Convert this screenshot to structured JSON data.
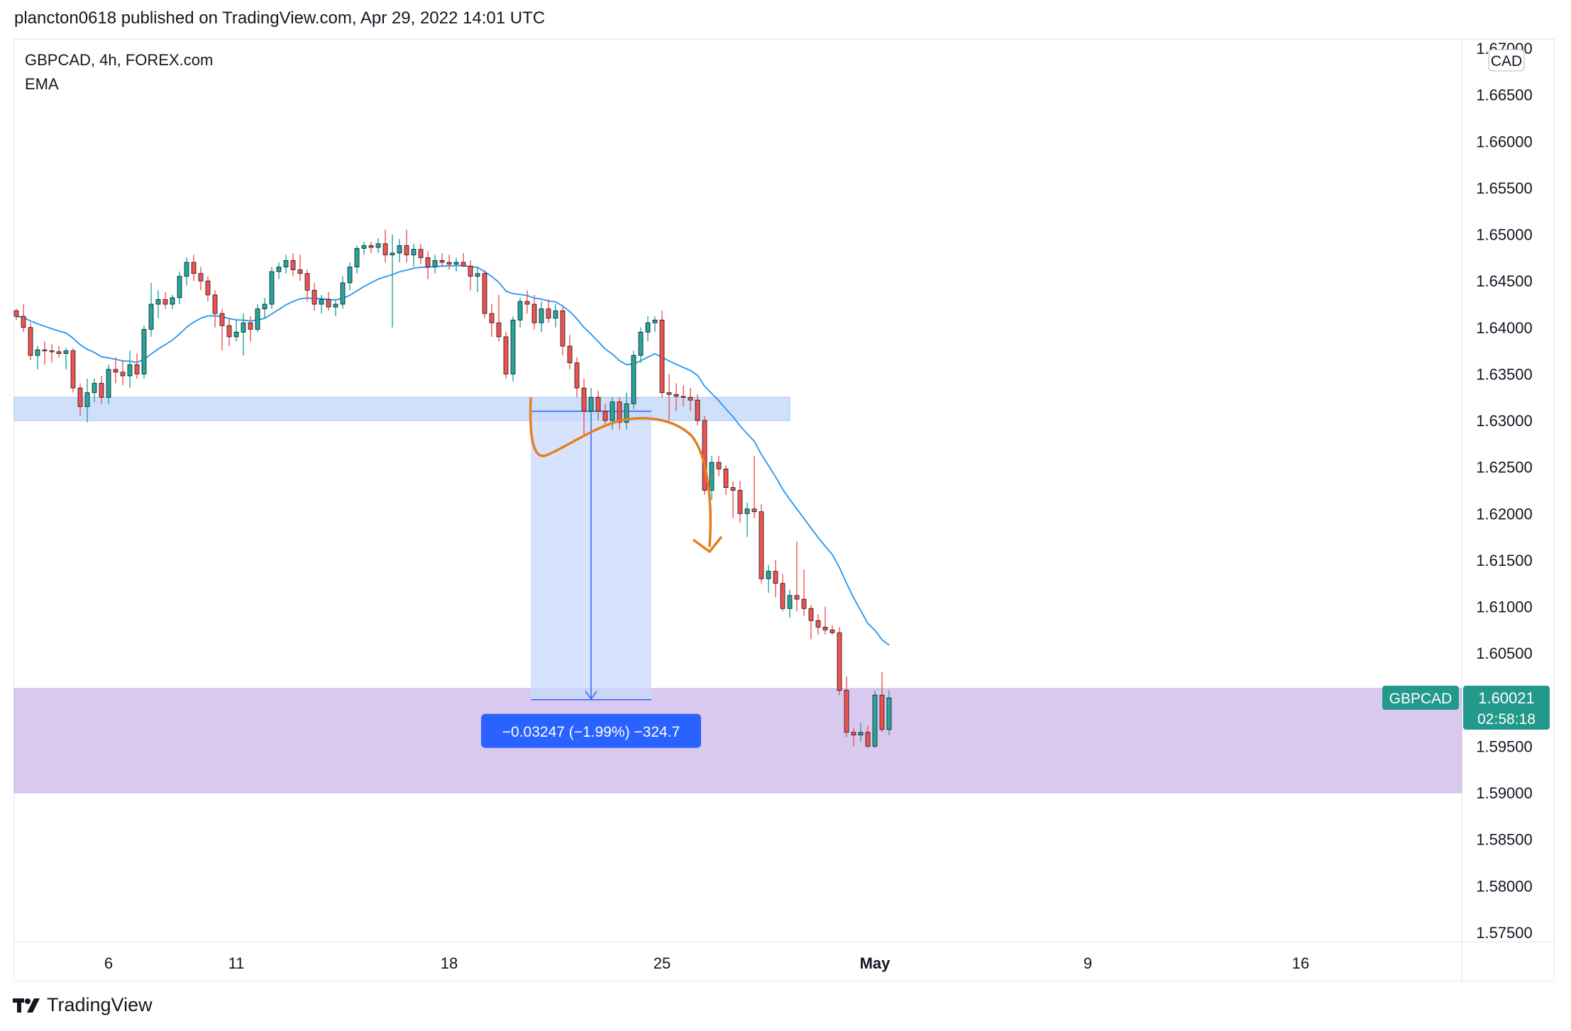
{
  "header": {
    "published": "plancton0618 published on TradingView.com, Apr 29, 2022 14:01 UTC"
  },
  "legend": {
    "symbol_line": "GBPCAD, 4h, FOREX.com",
    "indicator": "EMA"
  },
  "footer": {
    "brand": "TradingView"
  },
  "colors": {
    "up": "#26a69a",
    "down": "#ef5350",
    "ema": "#2196f3",
    "resistance_zone": "#cfe0fb",
    "support_zone": "#d9c9ee",
    "measure_box": "#c9d9fb",
    "measure_label": "#2962ff",
    "drawing": "#e67e22",
    "last_price_tag": "#22998a"
  },
  "chart_data": {
    "type": "candlestick",
    "title": "GBPCAD, 4h, FOREX.com",
    "currency": "CAD",
    "ylim": [
      1.574,
      1.671
    ],
    "y_ticks": [
      "1.67000",
      "1.66500",
      "1.66000",
      "1.65500",
      "1.65000",
      "1.64500",
      "1.64000",
      "1.63500",
      "1.63000",
      "1.62500",
      "1.62000",
      "1.61500",
      "1.61000",
      "1.60500",
      "1.59500",
      "1.59000",
      "1.58500",
      "1.58000",
      "1.57500"
    ],
    "x_ticks": [
      {
        "label": "6",
        "bar": 13
      },
      {
        "label": "11",
        "bar": 31
      },
      {
        "label": "18",
        "bar": 61
      },
      {
        "label": "25",
        "bar": 91
      },
      {
        "label": "May",
        "bar": 121
      },
      {
        "label": "9",
        "bar": 151
      },
      {
        "label": "16",
        "bar": 181
      }
    ],
    "indicator": "EMA",
    "last_price": {
      "symbol": "GBPCAD",
      "value": "1.60021",
      "countdown": "02:58:18"
    },
    "zones": [
      {
        "name": "resistance",
        "from_bar": 0,
        "to_bar": 109,
        "low": 1.63,
        "high": 1.6325
      },
      {
        "name": "support",
        "from_bar": 0,
        "to_bar": 205,
        "low": 1.59,
        "high": 1.6012
      }
    ],
    "measure": {
      "from_bar": 73,
      "to_bar": 89,
      "top": 1.631,
      "bottom": 1.6,
      "label": "−0.03247 (−1.99%) −324.7"
    },
    "candles": [
      {
        "o": 1.6418,
        "h": 1.642,
        "l": 1.6408,
        "c": 1.6412
      },
      {
        "o": 1.6412,
        "h": 1.6425,
        "l": 1.6395,
        "c": 1.64
      },
      {
        "o": 1.64,
        "h": 1.6405,
        "l": 1.6365,
        "c": 1.637
      },
      {
        "o": 1.637,
        "h": 1.638,
        "l": 1.6355,
        "c": 1.6376
      },
      {
        "o": 1.6376,
        "h": 1.6385,
        "l": 1.636,
        "c": 1.6375
      },
      {
        "o": 1.6375,
        "h": 1.6382,
        "l": 1.6362,
        "c": 1.6374
      },
      {
        "o": 1.6374,
        "h": 1.638,
        "l": 1.6368,
        "c": 1.6372
      },
      {
        "o": 1.6372,
        "h": 1.6378,
        "l": 1.6355,
        "c": 1.6375
      },
      {
        "o": 1.6375,
        "h": 1.6378,
        "l": 1.633,
        "c": 1.6335
      },
      {
        "o": 1.6335,
        "h": 1.634,
        "l": 1.6305,
        "c": 1.6315
      },
      {
        "o": 1.6315,
        "h": 1.6345,
        "l": 1.6298,
        "c": 1.633
      },
      {
        "o": 1.633,
        "h": 1.6345,
        "l": 1.632,
        "c": 1.634
      },
      {
        "o": 1.634,
        "h": 1.6348,
        "l": 1.6318,
        "c": 1.6325
      },
      {
        "o": 1.6325,
        "h": 1.636,
        "l": 1.6318,
        "c": 1.6355
      },
      {
        "o": 1.6355,
        "h": 1.6368,
        "l": 1.634,
        "c": 1.6352
      },
      {
        "o": 1.6352,
        "h": 1.6365,
        "l": 1.6338,
        "c": 1.6348
      },
      {
        "o": 1.6348,
        "h": 1.6375,
        "l": 1.6335,
        "c": 1.636
      },
      {
        "o": 1.636,
        "h": 1.6372,
        "l": 1.6345,
        "c": 1.635
      },
      {
        "o": 1.635,
        "h": 1.6402,
        "l": 1.6345,
        "c": 1.6398
      },
      {
        "o": 1.6398,
        "h": 1.6448,
        "l": 1.639,
        "c": 1.6425
      },
      {
        "o": 1.6425,
        "h": 1.644,
        "l": 1.641,
        "c": 1.643
      },
      {
        "o": 1.643,
        "h": 1.6438,
        "l": 1.642,
        "c": 1.6425
      },
      {
        "o": 1.6425,
        "h": 1.6435,
        "l": 1.642,
        "c": 1.6432
      },
      {
        "o": 1.6432,
        "h": 1.646,
        "l": 1.6425,
        "c": 1.6455
      },
      {
        "o": 1.6455,
        "h": 1.6475,
        "l": 1.6445,
        "c": 1.647
      },
      {
        "o": 1.647,
        "h": 1.6478,
        "l": 1.645,
        "c": 1.6458
      },
      {
        "o": 1.6458,
        "h": 1.6465,
        "l": 1.644,
        "c": 1.645
      },
      {
        "o": 1.645,
        "h": 1.6455,
        "l": 1.6428,
        "c": 1.6435
      },
      {
        "o": 1.6435,
        "h": 1.644,
        "l": 1.64,
        "c": 1.6415
      },
      {
        "o": 1.6415,
        "h": 1.642,
        "l": 1.6375,
        "c": 1.6402
      },
      {
        "o": 1.6402,
        "h": 1.641,
        "l": 1.638,
        "c": 1.639
      },
      {
        "o": 1.639,
        "h": 1.6408,
        "l": 1.6385,
        "c": 1.6395
      },
      {
        "o": 1.6395,
        "h": 1.6415,
        "l": 1.637,
        "c": 1.6405
      },
      {
        "o": 1.6405,
        "h": 1.6412,
        "l": 1.6385,
        "c": 1.6398
      },
      {
        "o": 1.6398,
        "h": 1.6425,
        "l": 1.6395,
        "c": 1.642
      },
      {
        "o": 1.642,
        "h": 1.6432,
        "l": 1.641,
        "c": 1.6425
      },
      {
        "o": 1.6425,
        "h": 1.6465,
        "l": 1.642,
        "c": 1.646
      },
      {
        "o": 1.646,
        "h": 1.647,
        "l": 1.6452,
        "c": 1.6465
      },
      {
        "o": 1.6465,
        "h": 1.6478,
        "l": 1.6458,
        "c": 1.6472
      },
      {
        "o": 1.6472,
        "h": 1.648,
        "l": 1.6455,
        "c": 1.6462
      },
      {
        "o": 1.6462,
        "h": 1.6478,
        "l": 1.645,
        "c": 1.6458
      },
      {
        "o": 1.6458,
        "h": 1.6462,
        "l": 1.6428,
        "c": 1.644
      },
      {
        "o": 1.644,
        "h": 1.6448,
        "l": 1.6418,
        "c": 1.6425
      },
      {
        "o": 1.6425,
        "h": 1.6435,
        "l": 1.6415,
        "c": 1.643
      },
      {
        "o": 1.643,
        "h": 1.6438,
        "l": 1.6418,
        "c": 1.6422
      },
      {
        "o": 1.6422,
        "h": 1.643,
        "l": 1.6412,
        "c": 1.6425
      },
      {
        "o": 1.6425,
        "h": 1.6455,
        "l": 1.642,
        "c": 1.6448
      },
      {
        "o": 1.6448,
        "h": 1.647,
        "l": 1.644,
        "c": 1.6465
      },
      {
        "o": 1.6465,
        "h": 1.6488,
        "l": 1.6458,
        "c": 1.6485
      },
      {
        "o": 1.6485,
        "h": 1.6492,
        "l": 1.6478,
        "c": 1.6488
      },
      {
        "o": 1.6488,
        "h": 1.6492,
        "l": 1.648,
        "c": 1.6486
      },
      {
        "o": 1.6486,
        "h": 1.6496,
        "l": 1.648,
        "c": 1.649
      },
      {
        "o": 1.649,
        "h": 1.6505,
        "l": 1.647,
        "c": 1.6478
      },
      {
        "o": 1.6478,
        "h": 1.65,
        "l": 1.64,
        "c": 1.648
      },
      {
        "o": 1.648,
        "h": 1.6495,
        "l": 1.647,
        "c": 1.6488
      },
      {
        "o": 1.6488,
        "h": 1.6505,
        "l": 1.647,
        "c": 1.6478
      },
      {
        "o": 1.6478,
        "h": 1.649,
        "l": 1.6465,
        "c": 1.6484
      },
      {
        "o": 1.6484,
        "h": 1.649,
        "l": 1.6468,
        "c": 1.6475
      },
      {
        "o": 1.6475,
        "h": 1.6482,
        "l": 1.6452,
        "c": 1.6465
      },
      {
        "o": 1.6465,
        "h": 1.6478,
        "l": 1.6458,
        "c": 1.6472
      },
      {
        "o": 1.6472,
        "h": 1.648,
        "l": 1.6465,
        "c": 1.647
      },
      {
        "o": 1.647,
        "h": 1.6478,
        "l": 1.6462,
        "c": 1.6468
      },
      {
        "o": 1.6468,
        "h": 1.6475,
        "l": 1.646,
        "c": 1.647
      },
      {
        "o": 1.647,
        "h": 1.648,
        "l": 1.6465,
        "c": 1.6466
      },
      {
        "o": 1.6466,
        "h": 1.6472,
        "l": 1.644,
        "c": 1.6455
      },
      {
        "o": 1.6455,
        "h": 1.6465,
        "l": 1.6438,
        "c": 1.6458
      },
      {
        "o": 1.6458,
        "h": 1.6462,
        "l": 1.641,
        "c": 1.6415
      },
      {
        "o": 1.6415,
        "h": 1.6425,
        "l": 1.639,
        "c": 1.6405
      },
      {
        "o": 1.6405,
        "h": 1.6435,
        "l": 1.6385,
        "c": 1.639
      },
      {
        "o": 1.639,
        "h": 1.6395,
        "l": 1.6345,
        "c": 1.635
      },
      {
        "o": 1.635,
        "h": 1.6412,
        "l": 1.6342,
        "c": 1.6408
      },
      {
        "o": 1.6408,
        "h": 1.6432,
        "l": 1.64,
        "c": 1.6428
      },
      {
        "o": 1.6428,
        "h": 1.644,
        "l": 1.6415,
        "c": 1.6425
      },
      {
        "o": 1.6425,
        "h": 1.6435,
        "l": 1.6398,
        "c": 1.6405
      },
      {
        "o": 1.6405,
        "h": 1.6428,
        "l": 1.6395,
        "c": 1.642
      },
      {
        "o": 1.642,
        "h": 1.643,
        "l": 1.6405,
        "c": 1.641
      },
      {
        "o": 1.641,
        "h": 1.6425,
        "l": 1.64,
        "c": 1.6418
      },
      {
        "o": 1.6418,
        "h": 1.6422,
        "l": 1.637,
        "c": 1.638
      },
      {
        "o": 1.638,
        "h": 1.6392,
        "l": 1.6355,
        "c": 1.6362
      },
      {
        "o": 1.6362,
        "h": 1.6368,
        "l": 1.6325,
        "c": 1.6335
      },
      {
        "o": 1.6335,
        "h": 1.6345,
        "l": 1.6285,
        "c": 1.631
      },
      {
        "o": 1.631,
        "h": 1.6335,
        "l": 1.6295,
        "c": 1.6325
      },
      {
        "o": 1.6325,
        "h": 1.6332,
        "l": 1.63,
        "c": 1.631
      },
      {
        "o": 1.631,
        "h": 1.6318,
        "l": 1.6295,
        "c": 1.63
      },
      {
        "o": 1.63,
        "h": 1.6325,
        "l": 1.629,
        "c": 1.632
      },
      {
        "o": 1.632,
        "h": 1.6325,
        "l": 1.629,
        "c": 1.6298
      },
      {
        "o": 1.6298,
        "h": 1.633,
        "l": 1.629,
        "c": 1.6318
      },
      {
        "o": 1.6318,
        "h": 1.6375,
        "l": 1.6312,
        "c": 1.637
      },
      {
        "o": 1.637,
        "h": 1.64,
        "l": 1.6362,
        "c": 1.6395
      },
      {
        "o": 1.6395,
        "h": 1.6412,
        "l": 1.6385,
        "c": 1.6405
      },
      {
        "o": 1.6405,
        "h": 1.6412,
        "l": 1.6395,
        "c": 1.6408
      },
      {
        "o": 1.6408,
        "h": 1.6418,
        "l": 1.6325,
        "c": 1.633
      },
      {
        "o": 1.633,
        "h": 1.635,
        "l": 1.63,
        "c": 1.6328
      },
      {
        "o": 1.6328,
        "h": 1.634,
        "l": 1.631,
        "c": 1.6326
      },
      {
        "o": 1.6326,
        "h": 1.6338,
        "l": 1.6315,
        "c": 1.6325
      },
      {
        "o": 1.6325,
        "h": 1.6335,
        "l": 1.631,
        "c": 1.6322
      },
      {
        "o": 1.6322,
        "h": 1.6328,
        "l": 1.6295,
        "c": 1.63
      },
      {
        "o": 1.63,
        "h": 1.6305,
        "l": 1.622,
        "c": 1.6225
      },
      {
        "o": 1.6225,
        "h": 1.6262,
        "l": 1.6215,
        "c": 1.6255
      },
      {
        "o": 1.6255,
        "h": 1.6262,
        "l": 1.624,
        "c": 1.6248
      },
      {
        "o": 1.6248,
        "h": 1.6252,
        "l": 1.622,
        "c": 1.6228
      },
      {
        "o": 1.6228,
        "h": 1.6235,
        "l": 1.6195,
        "c": 1.6225
      },
      {
        "o": 1.6225,
        "h": 1.6235,
        "l": 1.619,
        "c": 1.62
      },
      {
        "o": 1.62,
        "h": 1.6212,
        "l": 1.6175,
        "c": 1.6205
      },
      {
        "o": 1.6205,
        "h": 1.6262,
        "l": 1.6195,
        "c": 1.6202
      },
      {
        "o": 1.6202,
        "h": 1.621,
        "l": 1.6125,
        "c": 1.613
      },
      {
        "o": 1.613,
        "h": 1.6145,
        "l": 1.6115,
        "c": 1.6138
      },
      {
        "o": 1.6138,
        "h": 1.615,
        "l": 1.611,
        "c": 1.6125
      },
      {
        "o": 1.6125,
        "h": 1.6135,
        "l": 1.6095,
        "c": 1.6098
      },
      {
        "o": 1.6098,
        "h": 1.6118,
        "l": 1.6088,
        "c": 1.6112
      },
      {
        "o": 1.6112,
        "h": 1.617,
        "l": 1.6095,
        "c": 1.6108
      },
      {
        "o": 1.6108,
        "h": 1.614,
        "l": 1.609,
        "c": 1.6098
      },
      {
        "o": 1.6098,
        "h": 1.6102,
        "l": 1.6065,
        "c": 1.6085
      },
      {
        "o": 1.6085,
        "h": 1.6092,
        "l": 1.607,
        "c": 1.6078
      },
      {
        "o": 1.6078,
        "h": 1.61,
        "l": 1.607,
        "c": 1.6075
      },
      {
        "o": 1.6075,
        "h": 1.608,
        "l": 1.607,
        "c": 1.6072
      },
      {
        "o": 1.6072,
        "h": 1.6078,
        "l": 1.6005,
        "c": 1.601
      },
      {
        "o": 1.601,
        "h": 1.6025,
        "l": 1.596,
        "c": 1.5965
      },
      {
        "o": 1.5965,
        "h": 1.597,
        "l": 1.595,
        "c": 1.5962
      },
      {
        "o": 1.5962,
        "h": 1.5975,
        "l": 1.5955,
        "c": 1.5965
      },
      {
        "o": 1.5965,
        "h": 1.5972,
        "l": 1.5948,
        "c": 1.595
      },
      {
        "o": 1.595,
        "h": 1.601,
        "l": 1.5948,
        "c": 1.6005
      },
      {
        "o": 1.6005,
        "h": 1.603,
        "l": 1.5965,
        "c": 1.5968
      },
      {
        "o": 1.5968,
        "h": 1.601,
        "l": 1.5962,
        "c": 1.6002
      }
    ]
  }
}
